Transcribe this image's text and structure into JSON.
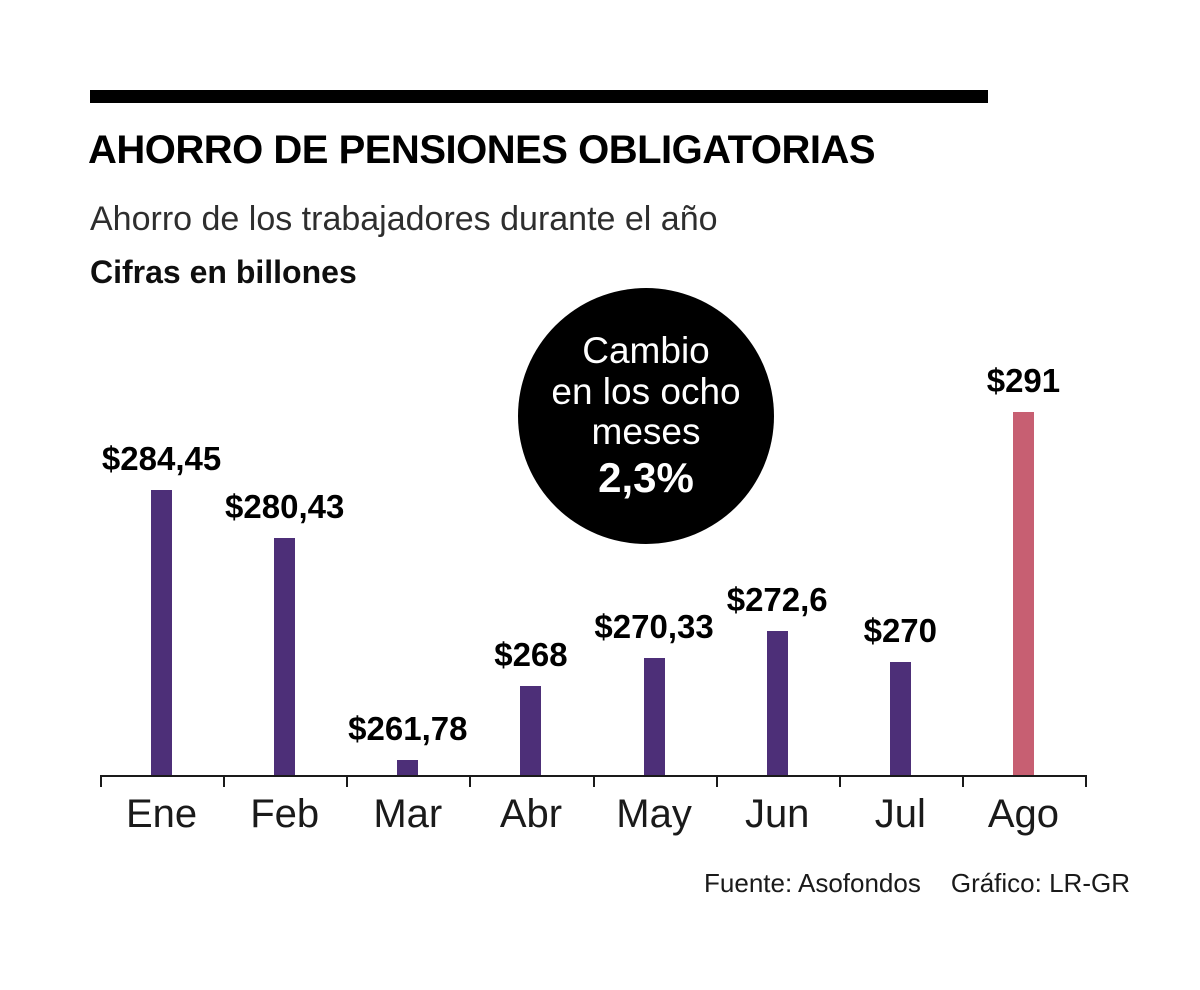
{
  "header": {
    "title": "AHORRO DE PENSIONES OBLIGATORIAS",
    "subtitle": "Ahorro de los trabajadores durante el año",
    "units_label": "Cifras en billones"
  },
  "badge": {
    "line1": "Cambio",
    "line2": "en los ocho",
    "line3": "meses",
    "value": "2,3%"
  },
  "footer": {
    "source": "Fuente: Asofondos",
    "credit": "Gráfico: LR-GR"
  },
  "colors": {
    "bar_purple": "#4d2f78",
    "bar_rose": "#c75f72",
    "badge_bg": "#000000",
    "axis": "#1a1a1a"
  },
  "chart_data": {
    "type": "bar",
    "title": "AHORRO DE PENSIONES OBLIGATORIAS",
    "subtitle": "Ahorro de los trabajadores durante el año",
    "xlabel": "",
    "ylabel": "Cifras en billones",
    "categories": [
      "Ene",
      "Feb",
      "Mar",
      "Abr",
      "May",
      "Jun",
      "Jul",
      "Ago"
    ],
    "values": [
      284.45,
      280.43,
      261.78,
      268,
      270.33,
      272.6,
      270,
      291
    ],
    "value_labels": [
      "$284,45",
      "$280,43",
      "$261,78",
      "$268",
      "$270,33",
      "$272,6",
      "$270",
      "$291"
    ],
    "bar_colors": [
      "#4d2f78",
      "#4d2f78",
      "#4d2f78",
      "#4d2f78",
      "#4d2f78",
      "#4d2f78",
      "#4d2f78",
      "#c75f72"
    ],
    "annotation": "Cambio en los ocho meses 2,3%",
    "ylim": [
      260.5,
      292
    ],
    "grid": false,
    "legend": false
  }
}
